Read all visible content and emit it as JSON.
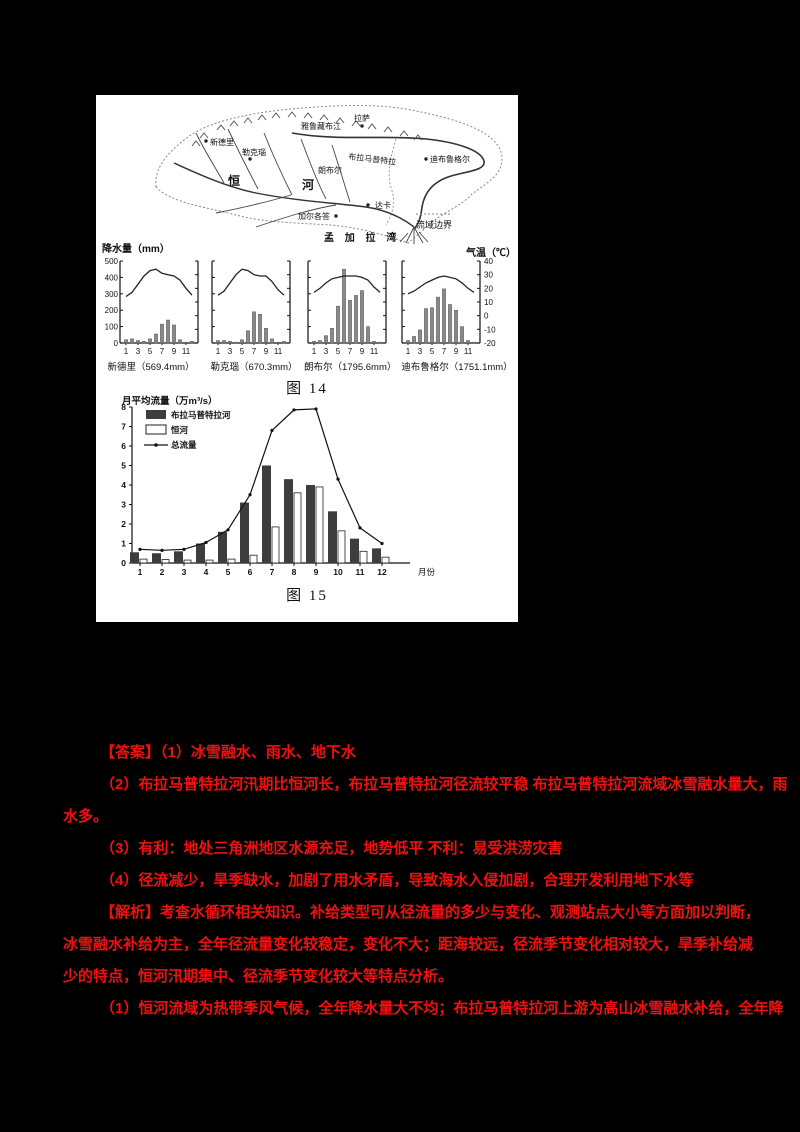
{
  "map": {
    "labels": {
      "lhasa": "拉萨",
      "yarlung_river": "雅鲁藏布江",
      "new_delhi": "新德里",
      "lucknow": "勒克瑙",
      "brahmaputra": "布拉马普特拉",
      "dibrugarh": "迪布鲁格尔",
      "rangpur": "朗布尔",
      "ganges_1": "恒",
      "ganges_2": "河",
      "dhaka": "达卡",
      "kolkata": "加尔各答",
      "bay_of_bengal": "孟 加 拉 湾",
      "basin_boundary_legend": "流域边界"
    }
  },
  "fig14": {
    "caption": "图 14",
    "left_axis_label": "降水量（mm）",
    "right_axis_label": "气温（℃）",
    "left_ticks": [
      500,
      400,
      300,
      200,
      100,
      0
    ],
    "right_ticks": [
      40,
      30,
      20,
      10,
      0,
      -10,
      -20
    ],
    "x_ticks": [
      1,
      3,
      5,
      7,
      9,
      11
    ]
  },
  "fig15": {
    "caption": "图 15",
    "title": "月平均流量（万m³/s）",
    "xlabel": "月份",
    "y_ticks": [
      0,
      1,
      2,
      3,
      4,
      5,
      6,
      7,
      8
    ]
  },
  "chart_data": [
    {
      "type": "bar+line",
      "station": "新德里（569.4mm）",
      "categories": [
        1,
        2,
        3,
        4,
        5,
        6,
        7,
        8,
        9,
        10,
        11,
        12
      ],
      "precip_mm": [
        20,
        25,
        15,
        10,
        25,
        55,
        115,
        140,
        110,
        20,
        5,
        10
      ],
      "temp_c": [
        14,
        17,
        23,
        29,
        33,
        34,
        31,
        30,
        29,
        26,
        20,
        15
      ],
      "ylim_left": [
        0,
        500
      ],
      "ylim_right": [
        -20,
        40
      ]
    },
    {
      "type": "bar+line",
      "station": "勒克瑙（670.3mm）",
      "categories": [
        1,
        2,
        3,
        4,
        5,
        6,
        7,
        8,
        9,
        10,
        11,
        12
      ],
      "precip_mm": [
        15,
        15,
        10,
        5,
        20,
        75,
        190,
        175,
        90,
        25,
        5,
        10
      ],
      "temp_c": [
        15,
        18,
        24,
        30,
        34,
        33,
        30,
        29,
        29,
        25,
        19,
        15
      ],
      "ylim_left": [
        0,
        500
      ],
      "ylim_right": [
        -20,
        40
      ]
    },
    {
      "type": "bar+line",
      "station": "朗布尔（1795.6mm）",
      "categories": [
        1,
        2,
        3,
        4,
        5,
        6,
        7,
        8,
        9,
        10,
        11,
        12
      ],
      "precip_mm": [
        10,
        15,
        45,
        90,
        225,
        450,
        260,
        290,
        320,
        100,
        10,
        5
      ],
      "temp_c": [
        17,
        20,
        24,
        27,
        28,
        29,
        29,
        29,
        28,
        26,
        21,
        17
      ],
      "ylim_left": [
        0,
        500
      ],
      "ylim_right": [
        -20,
        40
      ]
    },
    {
      "type": "bar+line",
      "station": "迪布鲁格尔（1751.1mm）",
      "categories": [
        1,
        2,
        3,
        4,
        5,
        6,
        7,
        8,
        9,
        10,
        11,
        12
      ],
      "precip_mm": [
        15,
        40,
        80,
        210,
        215,
        280,
        330,
        235,
        200,
        100,
        15,
        5
      ],
      "temp_c": [
        16,
        18,
        21,
        24,
        26,
        28,
        29,
        28,
        27,
        24,
        20,
        17
      ],
      "ylim_left": [
        0,
        500
      ],
      "ylim_right": [
        -20,
        40
      ]
    },
    {
      "type": "bar+line",
      "title": "月平均流量（万m³/s）",
      "categories": [
        1,
        2,
        3,
        4,
        5,
        6,
        7,
        8,
        9,
        10,
        11,
        12
      ],
      "xlabel": "月份",
      "ylim": [
        0,
        8
      ],
      "legend_position": "upper-left",
      "series": [
        {
          "name": "布拉马普特拉河",
          "type": "bar",
          "fill": "dark",
          "values": [
            0.55,
            0.5,
            0.6,
            1.0,
            1.6,
            3.1,
            5.0,
            4.3,
            4.0,
            2.65,
            1.25,
            0.75
          ]
        },
        {
          "name": "恒河",
          "type": "bar",
          "fill": "white",
          "values": [
            0.2,
            0.18,
            0.15,
            0.15,
            0.2,
            0.4,
            1.85,
            3.6,
            3.9,
            1.65,
            0.6,
            0.3
          ]
        },
        {
          "name": "总流量",
          "type": "line",
          "values": [
            0.7,
            0.65,
            0.7,
            1.05,
            1.7,
            3.5,
            6.8,
            7.85,
            7.9,
            4.3,
            1.8,
            1.0
          ]
        }
      ]
    }
  ],
  "answers": {
    "lines": [
      "【答案】（1）冰雪融水、雨水、地下水",
      "（2）布拉马普特拉河汛期比恒河长，布拉马普特拉河径流较平稳  布拉马普特拉河流域冰雪融水量大，雨",
      "水多。",
      "（3）有利：地处三角洲地区水源充足，地势低平  不利：易受洪涝灾害",
      "（4）径流减少，旱季缺水，加剧了用水矛盾，导致海水入侵加剧，合理开发利用地下水等",
      "【解析】考查水循环相关知识。补给类型可从径流量的多少与变化、观测站点大小等方面加以判断，",
      "冰雪融水补给为主，全年径流量变化较稳定，变化不大；距海较远，径流季节变化相对较大，旱季补给减",
      "少的特点，恒河汛期集中、径流季节变化较大等特点分析。",
      "（1）恒河流域为热带季风气候，全年降水量大不均；布拉马普特拉河上游为高山冰雪融水补给，全年降"
    ]
  }
}
